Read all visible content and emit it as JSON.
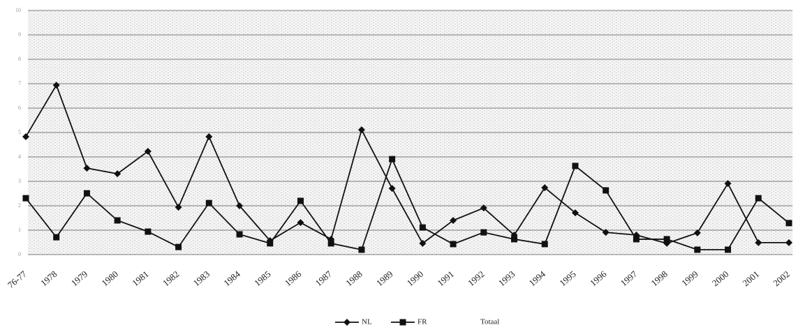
{
  "chart_data": {
    "type": "line",
    "categories": [
      "76-77",
      "1978",
      "1979",
      "1980",
      "1981",
      "1982",
      "1983",
      "1984",
      "1985",
      "1986",
      "1987",
      "1988",
      "1989",
      "1990",
      "1991",
      "1992",
      "1993",
      "1994",
      "1995",
      "1996",
      "1997",
      "1998",
      "1999",
      "2000",
      "2001",
      "2002"
    ],
    "series": [
      {
        "name": "NL",
        "color": "#111111",
        "marker": "diamond",
        "values": [
          4.83,
          6.94,
          3.54,
          3.31,
          4.23,
          1.94,
          4.83,
          2.0,
          0.57,
          1.31,
          0.63,
          5.11,
          2.71,
          0.46,
          1.4,
          1.91,
          0.8,
          2.74,
          1.71,
          0.91,
          0.8,
          0.46,
          0.89,
          2.91,
          0.49,
          0.49
        ]
      },
      {
        "name": "FR",
        "color": "#111111",
        "marker": "square",
        "values": [
          2.31,
          0.71,
          2.51,
          1.4,
          0.94,
          0.31,
          2.11,
          0.83,
          0.46,
          2.2,
          0.46,
          0.2,
          3.91,
          1.11,
          0.43,
          0.91,
          0.63,
          0.43,
          3.63,
          2.63,
          0.63,
          0.63,
          0.2,
          0.2,
          2.31,
          1.29
        ]
      },
      {
        "name": "Totaal",
        "color": "#ffffff",
        "marker": "none",
        "values": [
          null,
          null,
          null,
          null,
          null,
          null,
          null,
          null,
          null,
          null,
          null,
          null,
          null,
          null,
          null,
          null,
          null,
          null,
          null,
          null,
          null,
          null,
          null,
          null,
          null,
          null
        ]
      }
    ],
    "ylim": [
      0,
      10
    ],
    "yticks": [
      0,
      1,
      2,
      3,
      4,
      5,
      6,
      7,
      8,
      9,
      10
    ],
    "grid": true,
    "legend": "bottom"
  }
}
